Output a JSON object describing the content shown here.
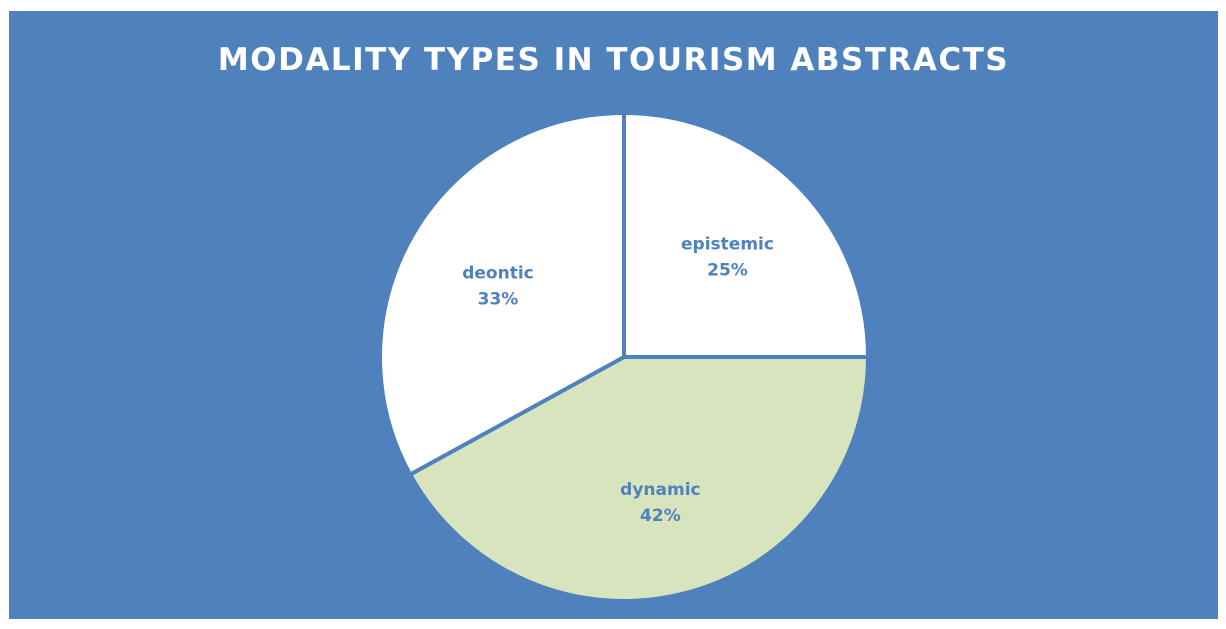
{
  "chart_data": {
    "type": "pie",
    "title": "MODALITY TYPES IN TOURISM ABSTRACTS",
    "categories": [
      "epistemic",
      "dynamic",
      "deontic"
    ],
    "values": [
      25,
      42,
      33
    ],
    "labels": [
      "25%",
      "42%",
      "33%"
    ],
    "colors": [
      "#ffffff",
      "#d7e4bd",
      "#ffffff"
    ],
    "background": "#4f81bd",
    "label_color": "#4f81bd",
    "title_color": "#ffffff",
    "legend": "none"
  }
}
